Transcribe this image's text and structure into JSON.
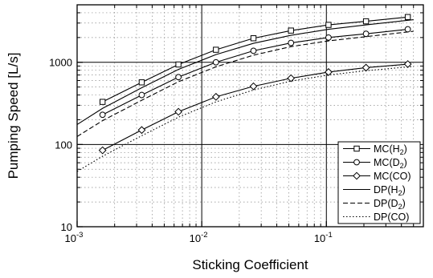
{
  "chart_data": {
    "type": "line",
    "title": "",
    "xlabel": "Sticking Coefficient",
    "ylabel": "Pumping Speed [L/s]",
    "xscale": "log",
    "yscale": "log",
    "xlim": [
      0.001,
      0.6
    ],
    "ylim": [
      10,
      5000
    ],
    "grid": true,
    "legend_position": "bottom-right",
    "x_ticks": [
      {
        "base": "10",
        "exp": "-3"
      },
      {
        "base": "10",
        "exp": "-2"
      },
      {
        "base": "10",
        "exp": "-1"
      }
    ],
    "y_ticks": [
      "10",
      "100",
      "1000"
    ],
    "series": [
      {
        "name": "MC(H2)",
        "label_main": "MC(H",
        "label_sub": "2",
        "label_end": ")",
        "line": "solid",
        "marker": "square",
        "x": [
          0.0016,
          0.0033,
          0.0065,
          0.013,
          0.026,
          0.052,
          0.104,
          0.208,
          0.45
        ],
        "y": [
          330,
          570,
          940,
          1420,
          1960,
          2430,
          2850,
          3150,
          3550
        ]
      },
      {
        "name": "MC(D2)",
        "label_main": "MC(D",
        "label_sub": "2",
        "label_end": ")",
        "line": "solid",
        "marker": "circle",
        "x": [
          0.0016,
          0.0033,
          0.0065,
          0.013,
          0.026,
          0.052,
          0.104,
          0.208,
          0.45
        ],
        "y": [
          230,
          400,
          660,
          1000,
          1380,
          1720,
          2000,
          2220,
          2520
        ]
      },
      {
        "name": "MC(CO)",
        "label_main": "MC(CO)",
        "label_sub": "",
        "label_end": "",
        "line": "solid",
        "marker": "diamond",
        "x": [
          0.0016,
          0.0033,
          0.0065,
          0.013,
          0.026,
          0.052,
          0.104,
          0.208,
          0.45
        ],
        "y": [
          85,
          150,
          250,
          380,
          510,
          640,
          760,
          860,
          950
        ]
      },
      {
        "name": "DP(H2)",
        "label_main": "DP(H",
        "label_sub": "2",
        "label_end": ")",
        "line": "solid",
        "marker": "none",
        "x": [
          0.001,
          0.0016,
          0.0033,
          0.0065,
          0.013,
          0.026,
          0.052,
          0.104,
          0.208,
          0.5
        ],
        "y": [
          175,
          275,
          490,
          820,
          1240,
          1700,
          2130,
          2520,
          2850,
          3300
        ]
      },
      {
        "name": "DP(D2)",
        "label_main": "DP(D",
        "label_sub": "2",
        "label_end": ")",
        "line": "dashed",
        "marker": "none",
        "x": [
          0.001,
          0.0016,
          0.0033,
          0.0065,
          0.013,
          0.026,
          0.052,
          0.104,
          0.208,
          0.5
        ],
        "y": [
          125,
          195,
          345,
          580,
          880,
          1220,
          1550,
          1820,
          2050,
          2380
        ]
      },
      {
        "name": "DP(CO)",
        "label_main": "DP(CO)",
        "label_sub": "",
        "label_end": "",
        "line": "dotted",
        "marker": "none",
        "x": [
          0.001,
          0.0016,
          0.0033,
          0.0065,
          0.013,
          0.026,
          0.052,
          0.104,
          0.208,
          0.5
        ],
        "y": [
          47,
          72,
          128,
          215,
          330,
          460,
          590,
          700,
          790,
          890
        ]
      }
    ]
  }
}
